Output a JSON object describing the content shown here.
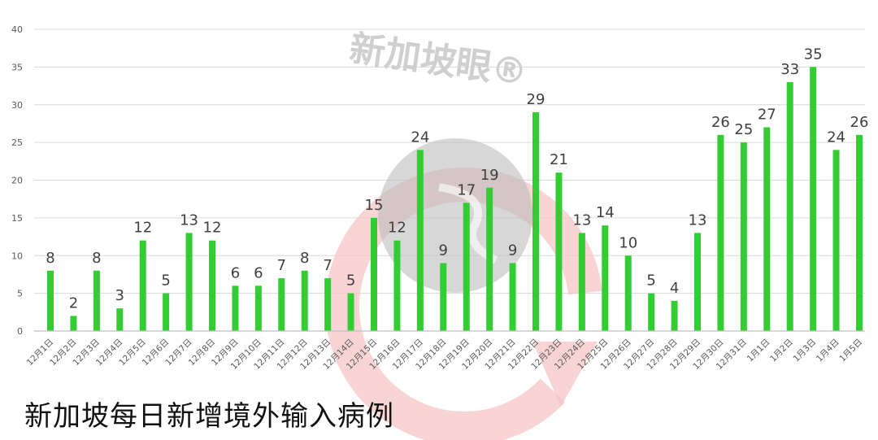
{
  "chart_data": {
    "type": "bar",
    "title": "新加坡每日新增境外输入病例",
    "xlabel": "",
    "ylabel": "",
    "ylim": [
      0,
      40
    ],
    "yticks": [
      0,
      5,
      10,
      15,
      20,
      25,
      30,
      35,
      40
    ],
    "grid": true,
    "legend": null,
    "bar_color": "#33cc33",
    "categories": [
      "12月1日",
      "12月2日",
      "12月3日",
      "12月4日",
      "12月5日",
      "12月6日",
      "12月7日",
      "12月8日",
      "12月9日",
      "12月10日",
      "12月11日",
      "12月12日",
      "12月13日",
      "12月14日",
      "12月15日",
      "12月16日",
      "12月17日",
      "12月18日",
      "12月19日",
      "12月20日",
      "12月21日",
      "12月22日",
      "12月23日",
      "12月24日",
      "12月25日",
      "12月26日",
      "12月27日",
      "12月28日",
      "12月29日",
      "12月30日",
      "12月31日",
      "1月1日",
      "1月2日",
      "1月3日",
      "1月4日",
      "1月5日"
    ],
    "values": [
      8,
      2,
      8,
      3,
      12,
      5,
      13,
      12,
      6,
      6,
      7,
      8,
      7,
      5,
      15,
      12,
      24,
      9,
      17,
      19,
      9,
      29,
      21,
      13,
      14,
      10,
      5,
      4,
      13,
      26,
      25,
      27,
      33,
      35,
      24,
      26
    ],
    "watermark": "新加坡眼®"
  }
}
